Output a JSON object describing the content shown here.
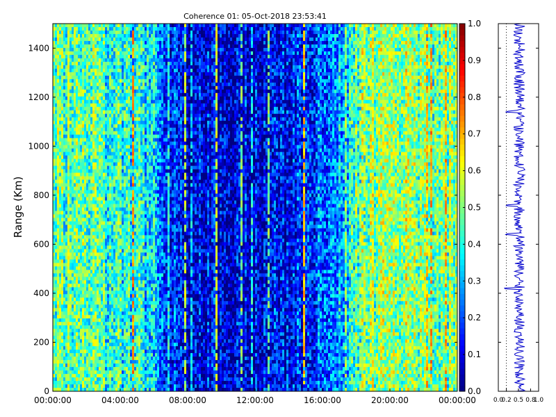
{
  "chart_data": [
    {
      "type": "heatmap",
      "title": "Coherence 01: 05-Oct-2018 23:53:41",
      "ylabel": "Range (Km)",
      "xlabel": "",
      "x_tick_labels": [
        "00:00:00",
        "04:00:00",
        "08:00:00",
        "12:00:00",
        "16:00:00",
        "20:00:00",
        "00:00:00"
      ],
      "x_range_hours": [
        0,
        24
      ],
      "y_ticks": [
        0,
        200,
        400,
        600,
        800,
        1000,
        1200,
        1400
      ],
      "ylim": [
        0,
        1500
      ],
      "colormap": "jet",
      "colorbar": {
        "vmin": 0.0,
        "vmax": 1.0,
        "tick_labels": [
          "0.0",
          "0.1",
          "0.2",
          "0.3",
          "0.4",
          "0.5",
          "0.6",
          "0.7",
          "0.8",
          "0.9",
          "1.0"
        ]
      },
      "value_profile_by_hour": {
        "hours": [
          0,
          2,
          4,
          5.5,
          6.5,
          7.5,
          10,
          12,
          14,
          15.5,
          16.5,
          17.3,
          18,
          20,
          22,
          24
        ],
        "values": [
          0.45,
          0.45,
          0.4,
          0.38,
          0.25,
          0.12,
          0.1,
          0.1,
          0.12,
          0.2,
          0.25,
          0.3,
          0.48,
          0.52,
          0.5,
          0.45
        ]
      },
      "grid": false
    },
    {
      "type": "line",
      "title": "",
      "x_tick_labels": [
        "0.0",
        "0.2",
        "0.5",
        "0.8",
        "1.0"
      ],
      "x_ticks": [
        0.0,
        0.2,
        0.5,
        0.8,
        1.0
      ],
      "xlim": [
        0,
        1
      ],
      "ylim": [
        0,
        1500
      ],
      "reference_line_x": 0.2,
      "mean_value": 0.52,
      "spike_ranges_km": [
        1140,
        760,
        640,
        420
      ]
    }
  ]
}
